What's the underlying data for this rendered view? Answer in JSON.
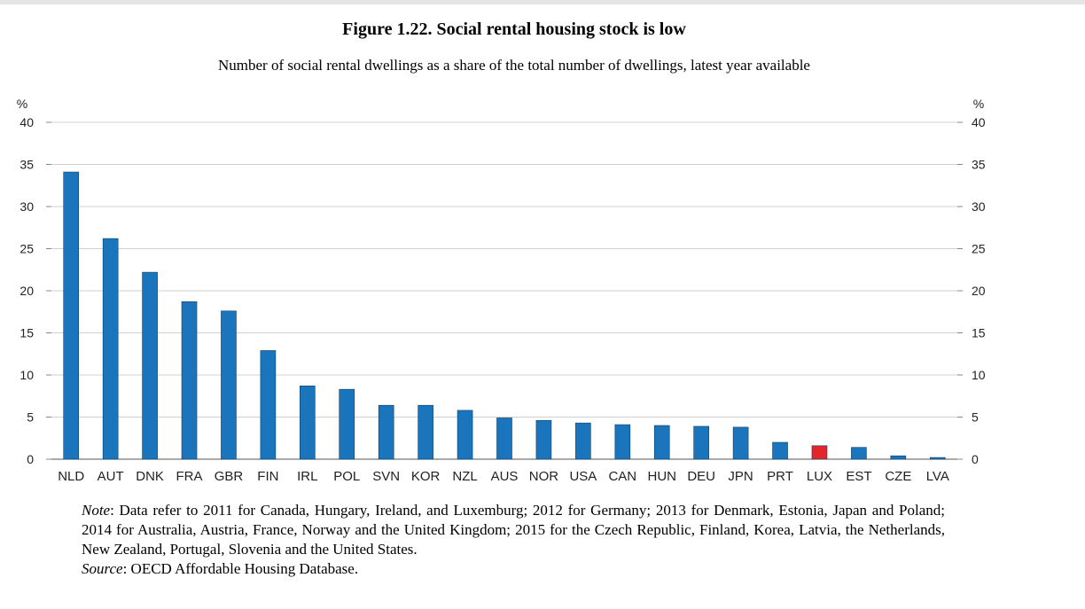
{
  "figure": {
    "title": "Figure 1.22. Social rental housing stock is low",
    "subtitle": "Number of social rental dwellings as a share of the total number of dwellings, latest year available"
  },
  "notes": {
    "note_label": "Note",
    "note_text": ": Data refer to 2011 for Canada, Hungary, Ireland, and Luxemburg; 2012 for Germany; 2013 for Denmark, Estonia, Japan and Poland; 2014 for Australia, Austria, France, Norway and the United Kingdom; 2015 for the Czech Republic, Finland, Korea, Latvia, the Netherlands, New Zealand, Portugal, Slovenia and the United States.",
    "source_label": "Source",
    "source_text": ": OECD Affordable Housing Database."
  },
  "chart_data": {
    "type": "bar",
    "title": "Figure 1.22. Social rental housing stock is low",
    "subtitle": "Number of social rental dwellings as a share of the total number of dwellings, latest year available",
    "ylabel_left": "%",
    "ylabel_right": "%",
    "ylim": [
      0,
      40
    ],
    "yticks": [
      0,
      5,
      10,
      15,
      20,
      25,
      30,
      35,
      40
    ],
    "grid": true,
    "categories": [
      "NLD",
      "AUT",
      "DNK",
      "FRA",
      "GBR",
      "FIN",
      "IRL",
      "POL",
      "SVN",
      "KOR",
      "NZL",
      "AUS",
      "NOR",
      "USA",
      "CAN",
      "HUN",
      "DEU",
      "JPN",
      "PRT",
      "LUX",
      "EST",
      "CZE",
      "LVA"
    ],
    "values": [
      34.1,
      26.2,
      22.2,
      18.7,
      17.6,
      12.9,
      8.7,
      8.3,
      6.4,
      6.4,
      5.8,
      4.9,
      4.6,
      4.3,
      4.1,
      4.0,
      3.9,
      3.8,
      2.0,
      1.6,
      1.4,
      0.4,
      0.2
    ],
    "colors": {
      "default": "#1a75bc",
      "highlight": "#e3262c",
      "grid": "#d0d0d0"
    },
    "highlight_category": "LUX"
  }
}
